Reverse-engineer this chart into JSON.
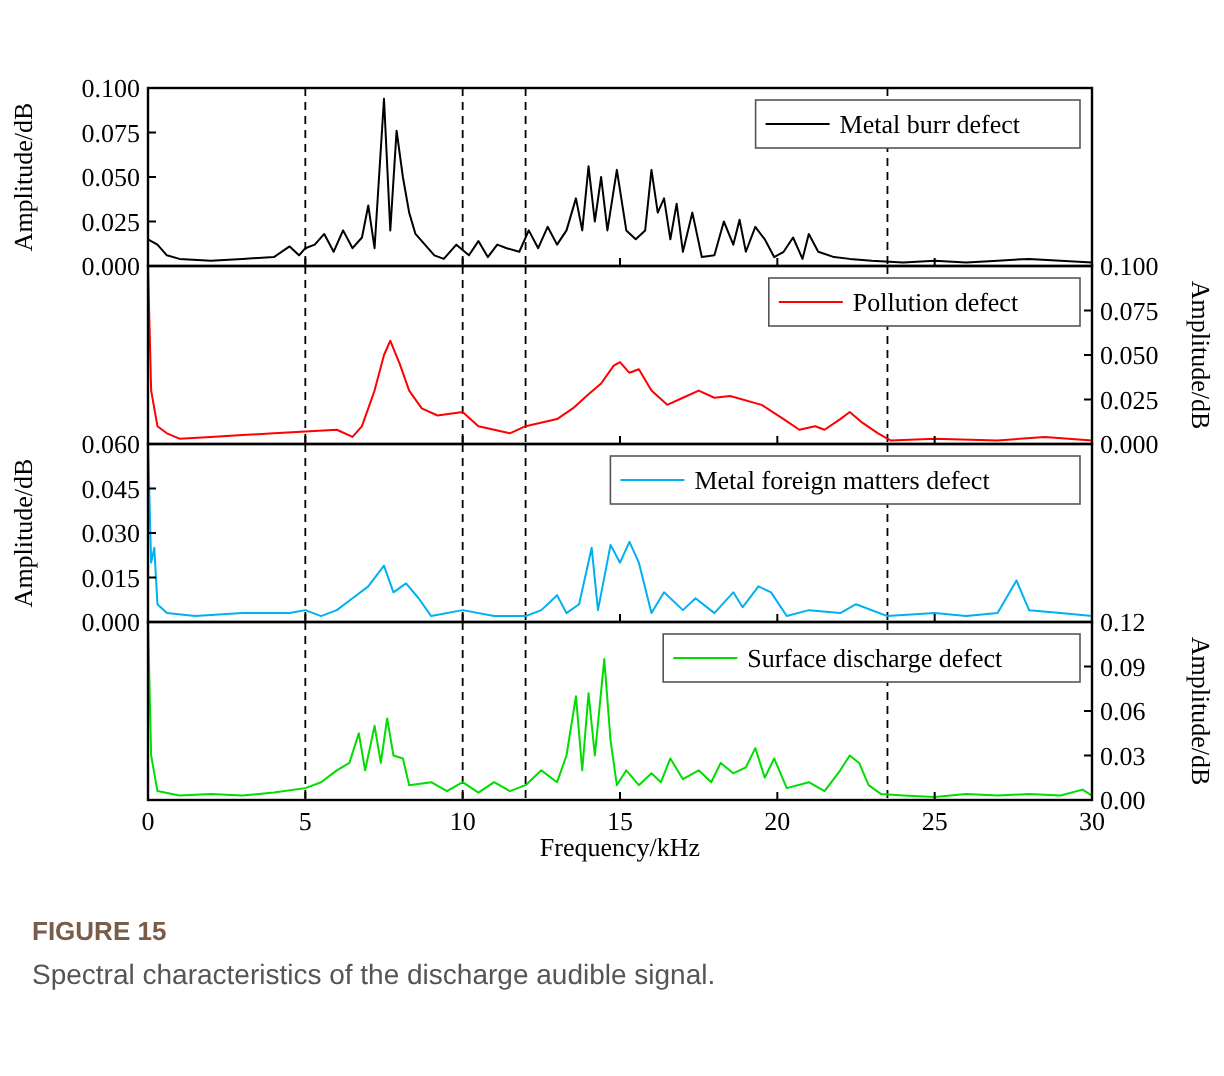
{
  "chart_data": [
    {
      "type": "line",
      "ylabel": "Amplitude/dB",
      "xlim": [
        0,
        30
      ],
      "xticks": [
        0,
        5,
        10,
        15,
        20,
        25,
        30
      ],
      "ylim": [
        0,
        0.1
      ],
      "yticks": [
        {
          "value": 0,
          "label": "0.000"
        },
        {
          "value": 0.025,
          "label": "0.025"
        },
        {
          "value": 0.05,
          "label": "0.050"
        },
        {
          "value": 0.075,
          "label": "0.075"
        },
        {
          "value": 0.1,
          "label": "0.100"
        }
      ],
      "tick_labels": "y",
      "legend": "top right",
      "line_style": "solid",
      "ref_lines": [
        {
          "axis": "x",
          "value": 5,
          "line_style": "dashed"
        },
        {
          "axis": "x",
          "value": 10,
          "line_style": "dashed"
        },
        {
          "axis": "x",
          "value": 12,
          "line_style": "dashed"
        },
        {
          "axis": "x",
          "value": 23.5,
          "line_style": "dashed"
        }
      ],
      "series": [
        {
          "name": "Metal burr defect",
          "color": "#000000",
          "x": [
            0,
            0.3,
            0.6,
            1,
            2,
            3,
            4,
            4.5,
            4.8,
            5,
            5.3,
            5.6,
            5.9,
            6.2,
            6.5,
            6.8,
            7,
            7.2,
            7.5,
            7.7,
            7.9,
            8.1,
            8.3,
            8.5,
            8.8,
            9.1,
            9.4,
            9.8,
            10.2,
            10.5,
            10.8,
            11.1,
            11.4,
            11.8,
            12.1,
            12.4,
            12.7,
            13,
            13.3,
            13.6,
            13.8,
            14,
            14.2,
            14.4,
            14.6,
            14.9,
            15.2,
            15.5,
            15.8,
            16,
            16.2,
            16.4,
            16.6,
            16.8,
            17,
            17.3,
            17.6,
            18,
            18.3,
            18.6,
            18.8,
            19,
            19.3,
            19.6,
            19.9,
            20.2,
            20.5,
            20.8,
            21,
            21.3,
            21.8,
            22.3,
            23,
            24,
            25,
            26,
            27,
            28,
            29,
            30
          ],
          "values": [
            0.015,
            0.012,
            0.006,
            0.004,
            0.003,
            0.004,
            0.005,
            0.011,
            0.006,
            0.01,
            0.012,
            0.018,
            0.008,
            0.02,
            0.01,
            0.016,
            0.034,
            0.01,
            0.094,
            0.02,
            0.076,
            0.05,
            0.03,
            0.018,
            0.012,
            0.006,
            0.004,
            0.012,
            0.006,
            0.014,
            0.005,
            0.012,
            0.01,
            0.008,
            0.02,
            0.01,
            0.022,
            0.012,
            0.02,
            0.038,
            0.02,
            0.056,
            0.025,
            0.05,
            0.02,
            0.054,
            0.02,
            0.015,
            0.02,
            0.054,
            0.03,
            0.038,
            0.015,
            0.035,
            0.008,
            0.03,
            0.005,
            0.006,
            0.025,
            0.012,
            0.026,
            0.008,
            0.022,
            0.015,
            0.005,
            0.008,
            0.016,
            0.004,
            0.018,
            0.008,
            0.005,
            0.004,
            0.003,
            0.002,
            0.003,
            0.002,
            0.003,
            0.004,
            0.003,
            0.002
          ]
        }
      ]
    },
    {
      "type": "line",
      "y2label": "Amplitude/dB",
      "xlim": [
        0,
        30
      ],
      "xticks": [
        0,
        5,
        10,
        15,
        20,
        25,
        30
      ],
      "y2lim": [
        0,
        0.1
      ],
      "y2ticks": [
        {
          "value": 0,
          "label": "0.000"
        },
        {
          "value": 0.025,
          "label": "0.025"
        },
        {
          "value": 0.05,
          "label": "0.050"
        },
        {
          "value": 0.075,
          "label": "0.075"
        },
        {
          "value": 0.1,
          "label": "0.100"
        }
      ],
      "tick_labels": "y",
      "legend": "top right",
      "line_style": "solid",
      "ref_lines": [
        {
          "axis": "x",
          "value": 5,
          "line_style": "dashed"
        },
        {
          "axis": "x",
          "value": 10,
          "line_style": "dashed"
        },
        {
          "axis": "x",
          "value": 12,
          "line_style": "dashed"
        },
        {
          "axis": "x",
          "value": 23.5,
          "line_style": "dashed"
        }
      ],
      "series": [
        {
          "name": "Pollution defect",
          "color": "#ff0000",
          "axis": "y2",
          "x": [
            0,
            0.1,
            0.3,
            0.6,
            1,
            2,
            3,
            4,
            5,
            6,
            6.5,
            6.8,
            7.2,
            7.5,
            7.7,
            8,
            8.3,
            8.7,
            9.2,
            10,
            10.5,
            11,
            11.5,
            12,
            13,
            13.5,
            14,
            14.4,
            14.8,
            15,
            15.3,
            15.6,
            16,
            16.5,
            17,
            17.5,
            18,
            18.5,
            19.5,
            20.2,
            20.7,
            21.2,
            21.5,
            22,
            22.3,
            22.7,
            23.2,
            23.6,
            25,
            27,
            28.5,
            30
          ],
          "values": [
            0.1,
            0.03,
            0.01,
            0.006,
            0.003,
            0.004,
            0.005,
            0.006,
            0.007,
            0.008,
            0.004,
            0.01,
            0.03,
            0.05,
            0.058,
            0.045,
            0.03,
            0.02,
            0.016,
            0.018,
            0.01,
            0.008,
            0.006,
            0.01,
            0.014,
            0.02,
            0.028,
            0.034,
            0.044,
            0.046,
            0.04,
            0.042,
            0.03,
            0.022,
            0.026,
            0.03,
            0.026,
            0.027,
            0.022,
            0.014,
            0.008,
            0.01,
            0.008,
            0.014,
            0.018,
            0.012,
            0.006,
            0.002,
            0.003,
            0.002,
            0.004,
            0.002
          ]
        }
      ]
    },
    {
      "type": "line",
      "ylabel": "Amplitude/dB",
      "xlim": [
        0,
        30
      ],
      "xticks": [
        0,
        5,
        10,
        15,
        20,
        25,
        30
      ],
      "ylim": [
        0,
        0.06
      ],
      "yticks": [
        {
          "value": 0,
          "label": "0.000"
        },
        {
          "value": 0.015,
          "label": "0.015"
        },
        {
          "value": 0.03,
          "label": "0.030"
        },
        {
          "value": 0.045,
          "label": "0.045"
        },
        {
          "value": 0.06,
          "label": "0.060"
        }
      ],
      "tick_labels": "y",
      "legend": "top right",
      "line_style": "solid",
      "ref_lines": [
        {
          "axis": "x",
          "value": 5,
          "line_style": "dashed"
        },
        {
          "axis": "x",
          "value": 10,
          "line_style": "dashed"
        },
        {
          "axis": "x",
          "value": 12,
          "line_style": "dashed"
        },
        {
          "axis": "x",
          "value": 23.5,
          "line_style": "dashed"
        }
      ],
      "series": [
        {
          "name": "Metal foreign matters defect",
          "color": "#00b0f0",
          "x": [
            0,
            0.1,
            0.2,
            0.3,
            0.6,
            1.5,
            3,
            4.5,
            5,
            5.5,
            6,
            6.5,
            7,
            7.5,
            7.8,
            8.2,
            8.6,
            9,
            10,
            11,
            12,
            12.5,
            13,
            13.3,
            13.7,
            14.1,
            14.3,
            14.7,
            15,
            15.3,
            15.6,
            16,
            16.4,
            17,
            17.4,
            18,
            18.6,
            18.9,
            19.4,
            19.8,
            20.3,
            21,
            22,
            22.5,
            23.5,
            25,
            26,
            27,
            27.6,
            28,
            29,
            30
          ],
          "values": [
            0.06,
            0.02,
            0.025,
            0.006,
            0.003,
            0.002,
            0.003,
            0.003,
            0.004,
            0.002,
            0.004,
            0.008,
            0.012,
            0.019,
            0.01,
            0.013,
            0.008,
            0.002,
            0.004,
            0.002,
            0.002,
            0.004,
            0.009,
            0.003,
            0.006,
            0.025,
            0.004,
            0.026,
            0.02,
            0.027,
            0.02,
            0.003,
            0.01,
            0.004,
            0.008,
            0.003,
            0.01,
            0.005,
            0.012,
            0.01,
            0.002,
            0.004,
            0.003,
            0.006,
            0.002,
            0.003,
            0.002,
            0.003,
            0.014,
            0.004,
            0.003,
            0.002
          ]
        }
      ]
    },
    {
      "type": "line",
      "xlabel": "Frequency/kHz",
      "y2label": "Amplitude/dB",
      "xlim": [
        0,
        30
      ],
      "xticks": [
        0,
        5,
        10,
        15,
        20,
        25,
        30
      ],
      "y2lim": [
        0,
        0.12
      ],
      "y2ticks": [
        {
          "value": 0,
          "label": "0.00"
        },
        {
          "value": 0.03,
          "label": "0.03"
        },
        {
          "value": 0.06,
          "label": "0.06"
        },
        {
          "value": 0.09,
          "label": "0.09"
        },
        {
          "value": 0.12,
          "label": "0.12"
        }
      ],
      "legend": "top right",
      "line_style": "solid",
      "ref_lines": [
        {
          "axis": "x",
          "value": 5,
          "line_style": "dashed"
        },
        {
          "axis": "x",
          "value": 10,
          "line_style": "dashed"
        },
        {
          "axis": "x",
          "value": 12,
          "line_style": "dashed"
        },
        {
          "axis": "x",
          "value": 23.5,
          "line_style": "dashed"
        }
      ],
      "annotations": [
        "FIGURE 15",
        "Spectral characteristics of the discharge audible signal."
      ],
      "series": [
        {
          "name": "Surface discharge defect",
          "color": "#00dd00",
          "axis": "y2",
          "x": [
            0,
            0.1,
            0.3,
            1,
            2,
            3,
            4,
            5,
            5.5,
            6,
            6.4,
            6.7,
            6.9,
            7.2,
            7.4,
            7.6,
            7.8,
            8.1,
            8.3,
            9,
            9.5,
            10,
            10.5,
            11,
            11.5,
            12,
            12.5,
            13,
            13.3,
            13.6,
            13.8,
            14,
            14.2,
            14.5,
            14.7,
            14.9,
            15.2,
            15.6,
            16,
            16.3,
            16.6,
            17,
            17.5,
            17.9,
            18.2,
            18.6,
            19,
            19.3,
            19.6,
            19.9,
            20.3,
            21,
            21.5,
            22,
            22.3,
            22.6,
            22.9,
            23.3,
            24,
            25,
            26,
            27,
            28,
            29,
            29.7,
            30
          ],
          "values": [
            0.12,
            0.03,
            0.006,
            0.003,
            0.004,
            0.003,
            0.005,
            0.008,
            0.012,
            0.02,
            0.025,
            0.045,
            0.02,
            0.05,
            0.025,
            0.055,
            0.03,
            0.028,
            0.01,
            0.012,
            0.006,
            0.012,
            0.005,
            0.012,
            0.006,
            0.01,
            0.02,
            0.012,
            0.03,
            0.07,
            0.02,
            0.072,
            0.03,
            0.095,
            0.04,
            0.01,
            0.02,
            0.01,
            0.018,
            0.012,
            0.028,
            0.014,
            0.02,
            0.012,
            0.025,
            0.018,
            0.022,
            0.035,
            0.015,
            0.028,
            0.008,
            0.012,
            0.006,
            0.02,
            0.03,
            0.025,
            0.01,
            0.004,
            0.003,
            0.002,
            0.004,
            0.003,
            0.004,
            0.003,
            0.007,
            0.003
          ]
        }
      ]
    }
  ]
}
